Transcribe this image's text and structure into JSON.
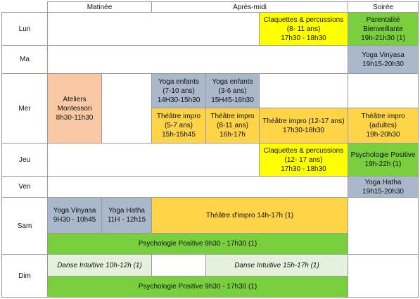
{
  "colors": {
    "grey": "#A9B9CB",
    "yellow": "#FFFF00",
    "green": "#7ACF3F",
    "orange": "#FFD447",
    "peach": "#F9C8A5",
    "palegreen": "#E4F1DC",
    "border": "#9A9A9A"
  },
  "headers": {
    "matinee": "Matinée",
    "apres_midi": "Après-midi",
    "soiree": "Soirée"
  },
  "days": {
    "lun": "Lun",
    "ma": "Ma",
    "mer": "Mer",
    "jeu": "Jeu",
    "ven": "Ven",
    "sam": "Sam",
    "dim": "Dim"
  },
  "events": {
    "lun_claquettes": [
      "Claquettes & percussions",
      "(8- 11 ans)",
      "17h30 - 18h30"
    ],
    "lun_parentalite": [
      "Parentalité",
      "Bienveillante",
      "19h-21h30 (1)"
    ],
    "ma_yoga": [
      "Yoga Vinyasa",
      "19h15-20h30"
    ],
    "mer_montessori": [
      "Ateliers",
      "Montessori",
      "8h30-11h30"
    ],
    "mer_yoga_enf_7": [
      "Yoga enfants",
      "(7-10 ans)",
      "14H30-15h30"
    ],
    "mer_yoga_enf_3": [
      "Yoga enfants",
      "(3-6 ans)",
      "15H45-16h30"
    ],
    "mer_theatre_5": [
      "Théâtre impro",
      "(5-7 ans)",
      "15h-15h45"
    ],
    "mer_theatre_8": [
      "Théâtre impro",
      "(8-11 ans)",
      "16h-17h"
    ],
    "mer_theatre_12": [
      "Théâtre impro (12-17 ans)",
      "17h30-18h30"
    ],
    "mer_theatre_adultes": [
      "Théâtre impro",
      "(adultes)",
      "19h-20h30"
    ],
    "jeu_claquettes": [
      "Claquettes & percussions",
      "(12- 17 ans)",
      "17h30 - 18h30"
    ],
    "jeu_psy": [
      "Psychologie Positive",
      "19h-22h (1)"
    ],
    "ven_yoga": [
      "Yoga Hatha",
      "19h15-20h30"
    ],
    "sam_yoga_vinyasa": [
      "Yoga Vinyasa",
      "9H30 - 10h45"
    ],
    "sam_yoga_hatha": [
      "Yoga Hatha",
      "11H - 12h15"
    ],
    "sam_theatre": [
      "Théâtre d'impro 14h-17h (1)"
    ],
    "sam_psy": [
      "Psychologie Positive 9h30 - 17h30 (1)"
    ],
    "dim_danse_matin": [
      "Danse Intuitive 10h-12h (1)"
    ],
    "dim_danse_aprem": [
      "Danse Intuitive 15h-17h (1)"
    ],
    "dim_psy": [
      "Psychologie Positive 9h30 - 17h30 (1)"
    ]
  }
}
